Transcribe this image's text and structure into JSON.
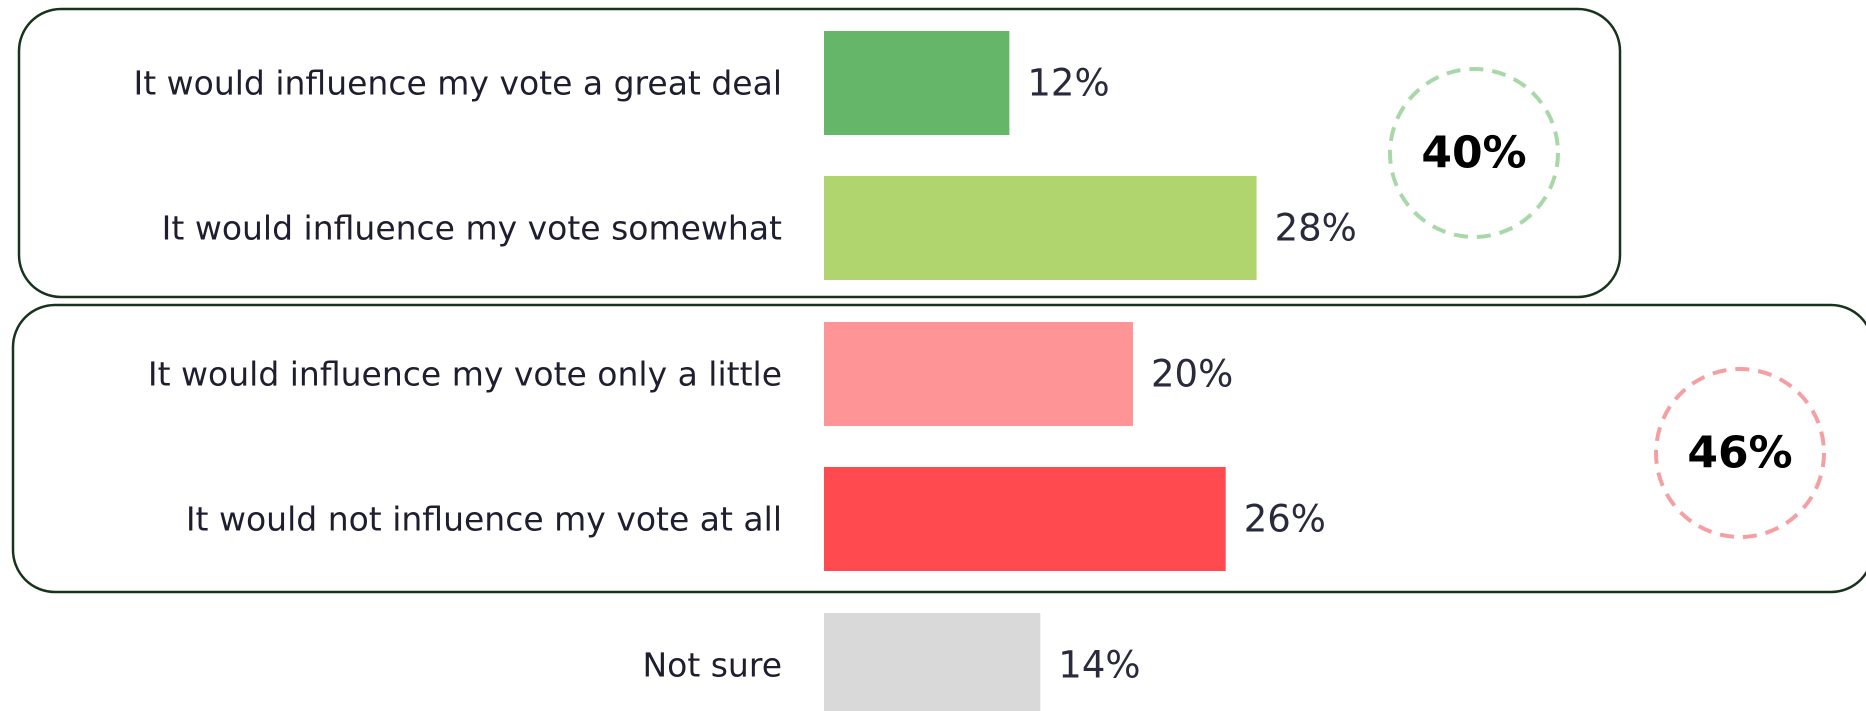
{
  "chart_data": {
    "type": "bar",
    "orientation": "horizontal",
    "categories": [
      "It would influence my vote a great deal",
      "It would influence my vote somewhat",
      "It would influence my vote only a little",
      "It would not influence my vote at all",
      "Not sure"
    ],
    "values": [
      12,
      28,
      20,
      26,
      14
    ],
    "value_labels": [
      "12%",
      "28%",
      "20%",
      "26%",
      "14%"
    ],
    "bar_colors": [
      "#66b66a",
      "#b0d46e",
      "#ff9496",
      "#ff4a50",
      "#d9d9d9"
    ],
    "xlim": [
      0,
      100
    ],
    "grid": false,
    "legend": "none",
    "groups": [
      {
        "total": "40%",
        "categories": [
          0,
          1
        ],
        "ring_color": "#a9d8a8"
      },
      {
        "total": "46%",
        "categories": [
          2,
          3
        ],
        "ring_color": "#f4a0a2"
      }
    ]
  }
}
